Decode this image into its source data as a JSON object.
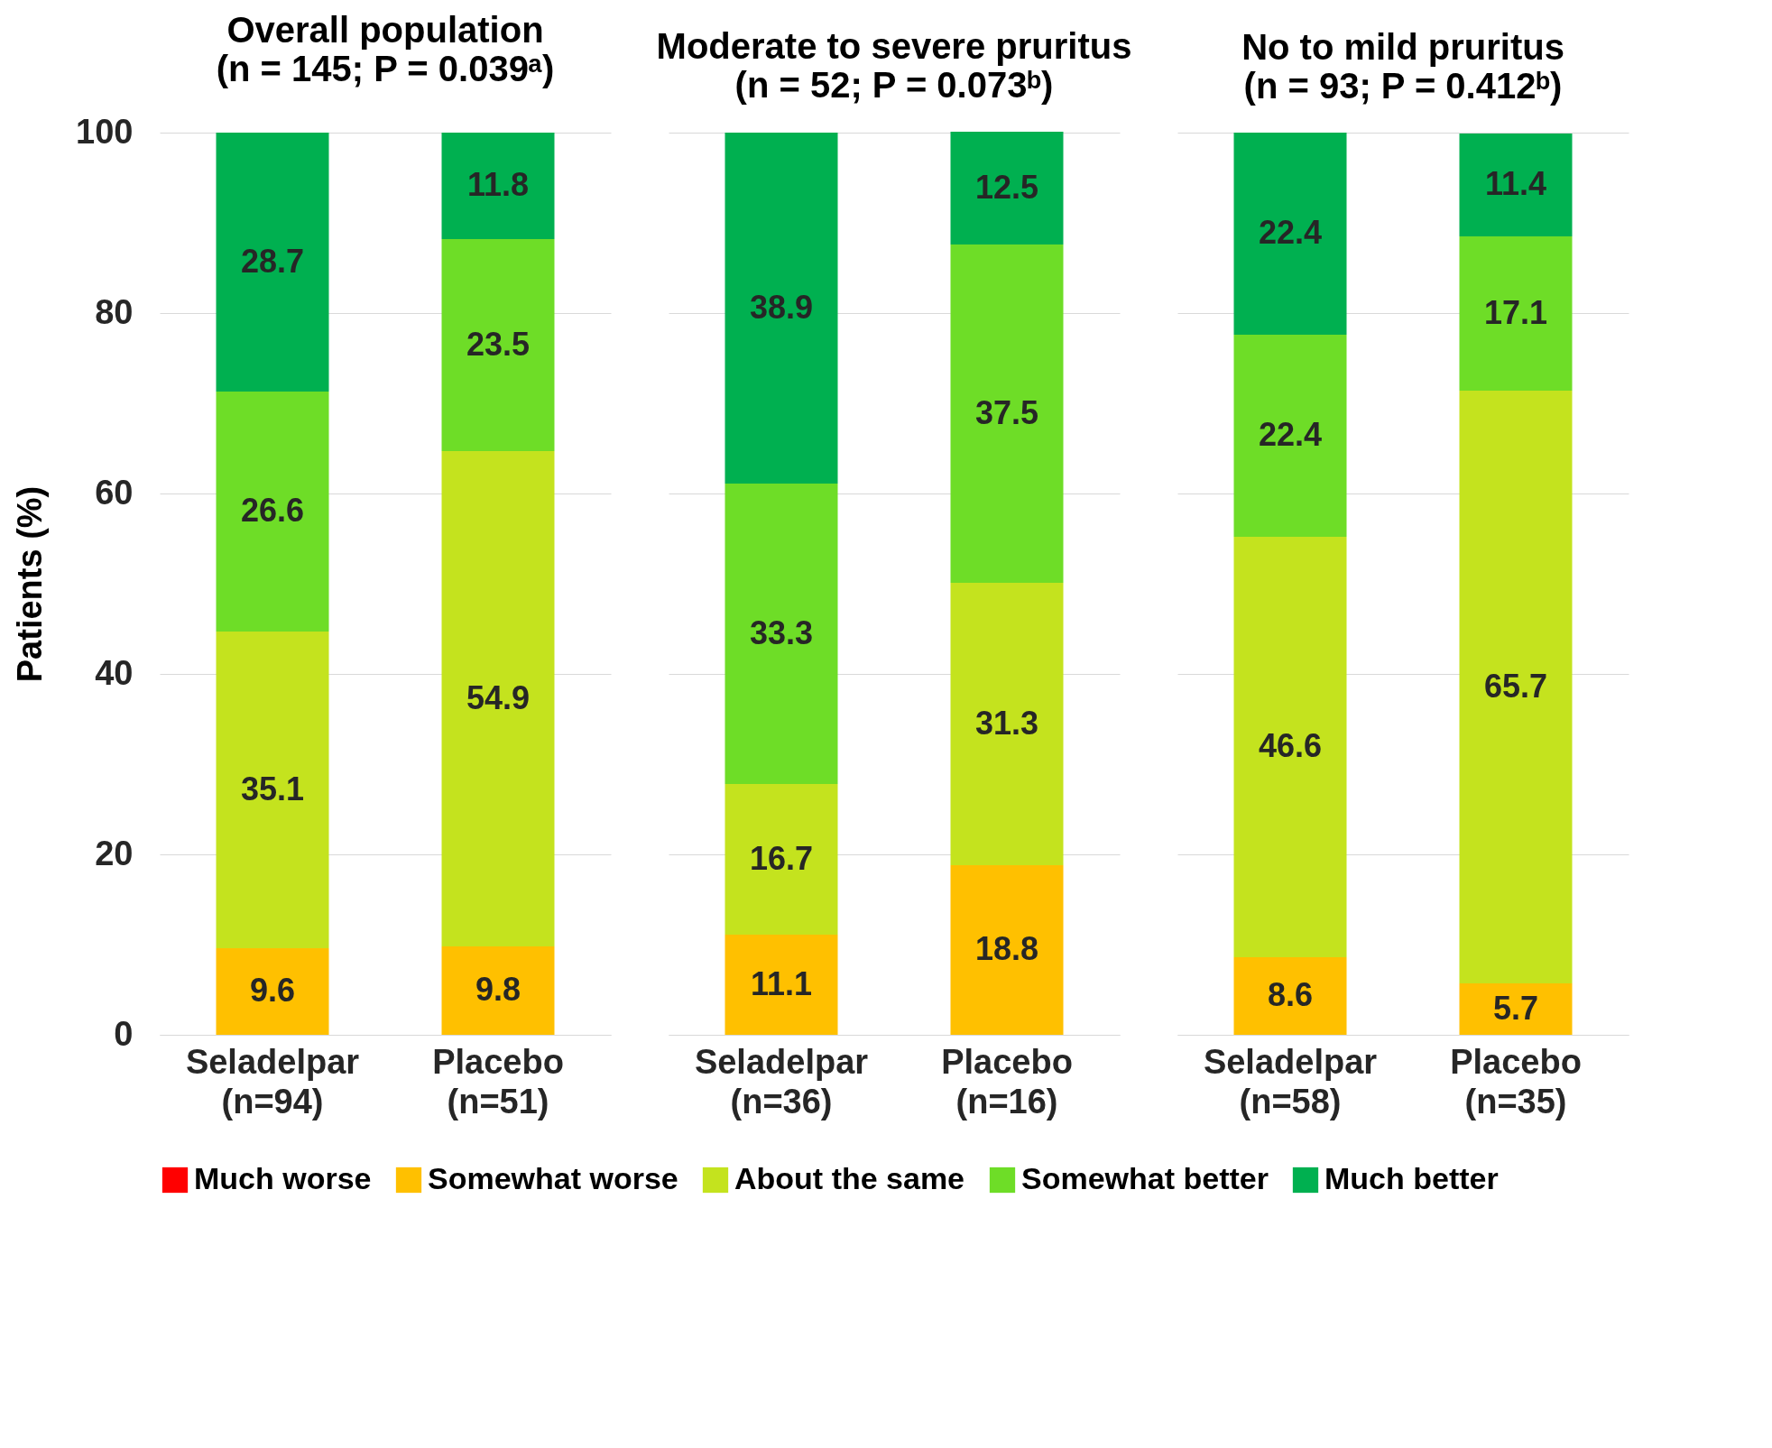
{
  "chart_data": [
    {
      "type": "bar",
      "title": "Overall population",
      "subtitle": "(n = 145; P = 0.039ᵃ)",
      "ylabel": "Patients (%)",
      "categories": [
        "Seladelpar (n=94)",
        "Placebo (n=51)"
      ],
      "stacked": true,
      "data_labels": true,
      "ylim": [
        0,
        100
      ],
      "yticks": [
        0,
        20,
        40,
        60,
        80,
        100
      ],
      "grid": "y",
      "legend": "bottom",
      "series": [
        {
          "name": "Much worse",
          "color": "#ff0000",
          "values": [
            null,
            null
          ]
        },
        {
          "name": "Somewhat worse",
          "color": "#ffc000",
          "values": [
            9.6,
            9.8
          ]
        },
        {
          "name": "About the same",
          "color": "#c4e31e",
          "values": [
            35.1,
            54.9
          ]
        },
        {
          "name": "Somewhat better",
          "color": "#6edd27",
          "values": [
            26.6,
            23.5
          ]
        },
        {
          "name": "Much better",
          "color": "#00b050",
          "values": [
            28.7,
            11.8
          ]
        }
      ]
    },
    {
      "type": "bar",
      "title": "Moderate to severe pruritus",
      "subtitle": "(n = 52; P = 0.073ᵇ)",
      "categories": [
        "Seladelpar (n=36)",
        "Placebo (n=16)"
      ],
      "stacked": true,
      "data_labels": true,
      "ylim": [
        0,
        100
      ],
      "yticks": [
        0,
        20,
        40,
        60,
        80,
        100
      ],
      "grid": "y",
      "tick_labels": "x",
      "legend": "bottom",
      "series": [
        {
          "name": "Somewhat worse",
          "color": "#ffc000",
          "values": [
            11.1,
            18.8
          ]
        },
        {
          "name": "About the same",
          "color": "#c4e31e",
          "values": [
            16.7,
            31.3
          ]
        },
        {
          "name": "Somewhat better",
          "color": "#6edd27",
          "values": [
            33.3,
            37.5
          ]
        },
        {
          "name": "Much better",
          "color": "#00b050",
          "values": [
            38.9,
            12.5
          ]
        }
      ]
    },
    {
      "type": "bar",
      "title": "No to mild pruritus",
      "subtitle": "(n = 93;  P = 0.412ᵇ)",
      "categories": [
        "Seladelpar (n=58)",
        "Placebo (n=35)"
      ],
      "stacked": true,
      "data_labels": true,
      "ylim": [
        0,
        100
      ],
      "yticks": [
        0,
        20,
        40,
        60,
        80,
        100
      ],
      "grid": "y",
      "tick_labels": "x",
      "legend": "bottom",
      "series": [
        {
          "name": "Somewhat worse",
          "color": "#ffc000",
          "values": [
            8.6,
            5.7
          ]
        },
        {
          "name": "About the same",
          "color": "#c4e31e",
          "values": [
            46.6,
            65.7
          ]
        },
        {
          "name": "Somewhat better",
          "color": "#6edd27",
          "values": [
            22.4,
            17.1
          ]
        },
        {
          "name": "Much better",
          "color": "#00b050",
          "values": [
            22.4,
            11.4
          ]
        }
      ]
    }
  ]
}
